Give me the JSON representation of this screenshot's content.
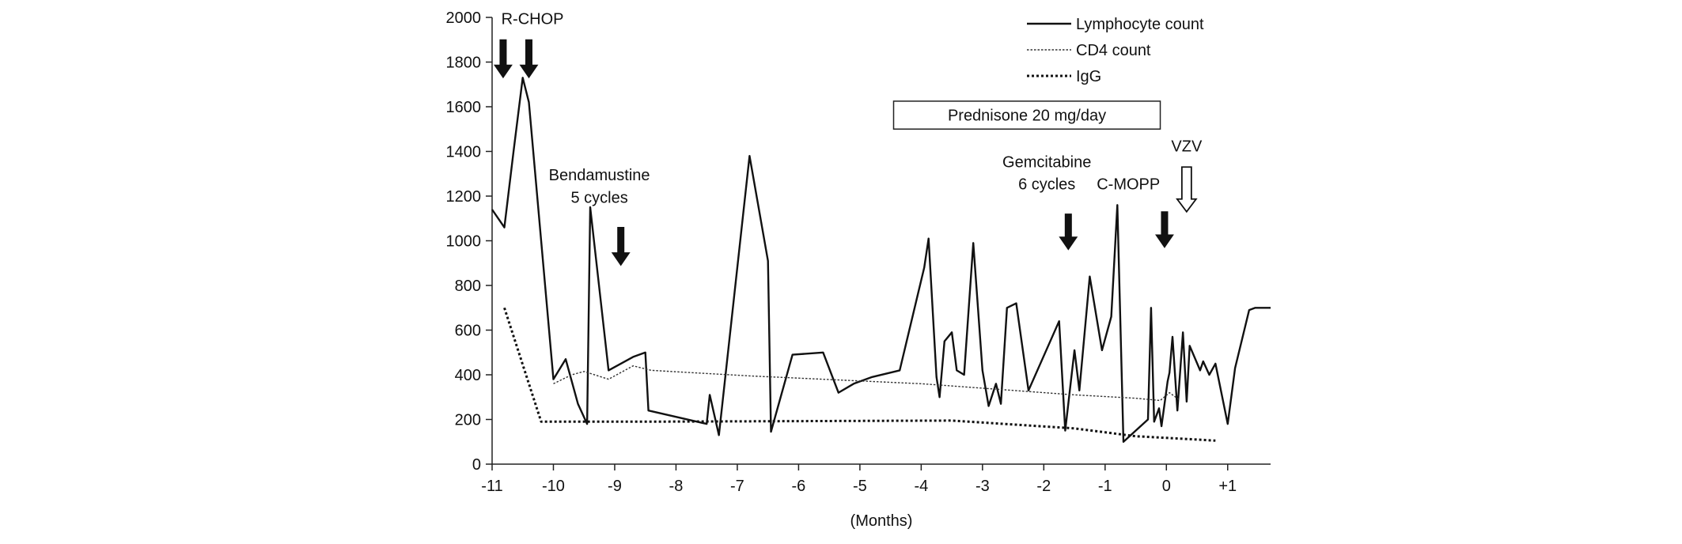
{
  "chart_data": {
    "type": "line",
    "title": "",
    "xlabel": "(Months)",
    "ylabel": "",
    "xlim": [
      -11,
      1.7
    ],
    "ylim": [
      0,
      2000
    ],
    "yticks": [
      0,
      200,
      400,
      600,
      800,
      1000,
      1200,
      1400,
      1600,
      1800,
      2000
    ],
    "xticks": [
      {
        "v": -11,
        "label": "-11"
      },
      {
        "v": -10,
        "label": "-10"
      },
      {
        "v": -9,
        "label": "-9"
      },
      {
        "v": -8,
        "label": "-8"
      },
      {
        "v": -7,
        "label": "-7"
      },
      {
        "v": -6,
        "label": "-6"
      },
      {
        "v": -5,
        "label": "-5"
      },
      {
        "v": -4,
        "label": "-4"
      },
      {
        "v": -3,
        "label": "-3"
      },
      {
        "v": -2,
        "label": "-2"
      },
      {
        "v": -1,
        "label": "-1"
      },
      {
        "v": 0,
        "label": "0"
      },
      {
        "v": 1,
        "label": "+1"
      }
    ],
    "grid": false,
    "legend_position": "top-right",
    "series": [
      {
        "name": "Lymphocyte count",
        "style": "solid",
        "points": [
          [
            -11.0,
            1140
          ],
          [
            -10.8,
            1060
          ],
          [
            -10.65,
            1400
          ],
          [
            -10.5,
            1730
          ],
          [
            -10.4,
            1620
          ],
          [
            -10.2,
            1000
          ],
          [
            -10.0,
            380
          ],
          [
            -9.8,
            470
          ],
          [
            -9.6,
            270
          ],
          [
            -9.45,
            180
          ],
          [
            -9.4,
            1150
          ],
          [
            -9.1,
            420
          ],
          [
            -8.7,
            480
          ],
          [
            -8.5,
            500
          ],
          [
            -8.45,
            240
          ],
          [
            -7.5,
            180
          ],
          [
            -7.45,
            310
          ],
          [
            -7.3,
            130
          ],
          [
            -6.8,
            1380
          ],
          [
            -6.5,
            910
          ],
          [
            -6.45,
            145
          ],
          [
            -6.1,
            490
          ],
          [
            -5.6,
            500
          ],
          [
            -5.35,
            320
          ],
          [
            -5.1,
            360
          ],
          [
            -4.8,
            390
          ],
          [
            -4.35,
            420
          ],
          [
            -3.95,
            880
          ],
          [
            -3.88,
            1010
          ],
          [
            -3.75,
            390
          ],
          [
            -3.7,
            300
          ],
          [
            -3.62,
            550
          ],
          [
            -3.5,
            590
          ],
          [
            -3.42,
            420
          ],
          [
            -3.3,
            400
          ],
          [
            -3.15,
            990
          ],
          [
            -3.0,
            420
          ],
          [
            -2.9,
            260
          ],
          [
            -2.78,
            360
          ],
          [
            -2.7,
            270
          ],
          [
            -2.6,
            700
          ],
          [
            -2.45,
            720
          ],
          [
            -2.25,
            330
          ],
          [
            -1.75,
            640
          ],
          [
            -1.65,
            150
          ],
          [
            -1.5,
            510
          ],
          [
            -1.42,
            330
          ],
          [
            -1.25,
            840
          ],
          [
            -1.05,
            510
          ],
          [
            -0.9,
            660
          ],
          [
            -0.8,
            1160
          ],
          [
            -0.7,
            100
          ],
          [
            -0.3,
            200
          ],
          [
            -0.25,
            700
          ],
          [
            -0.2,
            190
          ],
          [
            -0.12,
            250
          ],
          [
            -0.08,
            170
          ],
          [
            0.02,
            370
          ],
          [
            0.05,
            410
          ],
          [
            0.1,
            570
          ],
          [
            0.18,
            240
          ],
          [
            0.27,
            590
          ],
          [
            0.33,
            280
          ],
          [
            0.38,
            530
          ],
          [
            0.55,
            420
          ],
          [
            0.6,
            460
          ],
          [
            0.7,
            400
          ],
          [
            0.8,
            450
          ],
          [
            1.0,
            180
          ],
          [
            1.12,
            430
          ],
          [
            1.35,
            690
          ],
          [
            1.45,
            700
          ],
          [
            1.7,
            700
          ]
        ]
      },
      {
        "name": "CD4 count",
        "style": "thin-dotted",
        "points": [
          [
            -10.0,
            360
          ],
          [
            -9.7,
            400
          ],
          [
            -9.5,
            415
          ],
          [
            -9.1,
            380
          ],
          [
            -8.7,
            440
          ],
          [
            -8.4,
            420
          ],
          [
            -6.8,
            395
          ],
          [
            -4.0,
            360
          ],
          [
            -1.5,
            310
          ],
          [
            -0.5,
            295
          ],
          [
            -0.1,
            285
          ],
          [
            0.05,
            320
          ],
          [
            0.2,
            290
          ]
        ]
      },
      {
        "name": "IgG",
        "style": "thick-dotted",
        "points": [
          [
            -10.8,
            700
          ],
          [
            -10.2,
            190
          ],
          [
            -8.5,
            190
          ],
          [
            -3.5,
            195
          ],
          [
            -1.5,
            160
          ],
          [
            -0.5,
            125
          ],
          [
            0.5,
            110
          ],
          [
            0.8,
            105
          ]
        ]
      }
    ],
    "annotations": {
      "rchop": {
        "label": "R-CHOP",
        "at": -10.85,
        "y": 1970
      },
      "bendamustine": {
        "line1": "Bendamustine",
        "line2": "5 cycles",
        "at": -9.25,
        "y1": 1270,
        "y2": 1170
      },
      "gemcitabine": {
        "line1": "Gemcitabine",
        "line2": "6 cycles",
        "at": -1.95,
        "y1": 1330,
        "y2": 1230
      },
      "cmopp": {
        "label": "C-MOPP",
        "at": -0.62,
        "y": 1230
      },
      "vzv": {
        "label": "VZV",
        "at": 0.33,
        "y": 1400
      },
      "prednisone": {
        "label": "Prednisone 20 mg/day",
        "x0": -4.45,
        "x1": -0.1,
        "y_top": 1625,
        "y_bottom": 1500
      }
    },
    "arrows": [
      {
        "name": "rchop-arrow-1",
        "x": -10.82,
        "y_top": 1900,
        "y_bottom": 1730,
        "fill": "solid"
      },
      {
        "name": "rchop-arrow-2",
        "x": -10.4,
        "y_top": 1900,
        "y_bottom": 1730,
        "fill": "solid"
      },
      {
        "name": "bendamustine-arrow",
        "x": -8.9,
        "y_top": 1060,
        "y_bottom": 890,
        "fill": "solid"
      },
      {
        "name": "gemcitabine-arrow",
        "x": -1.6,
        "y_top": 1120,
        "y_bottom": 960,
        "fill": "solid"
      },
      {
        "name": "cmopp-arrow",
        "x": -0.03,
        "y_top": 1130,
        "y_bottom": 970,
        "fill": "solid"
      },
      {
        "name": "vzv-arrow",
        "x": 0.33,
        "y_top": 1330,
        "y_bottom": 1130,
        "fill": "hollow"
      }
    ]
  }
}
